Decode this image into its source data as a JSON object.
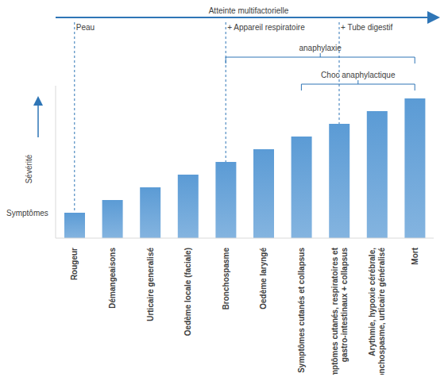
{
  "chart_data": {
    "type": "bar",
    "title": "Atteinte multifactorielle",
    "y_label": "Sévérité",
    "y_label_bottom": "Symptômes",
    "categories": [
      "Rougeur",
      "Démangeaisons",
      "Urticaire generalisé",
      "Oedème locale (faciale)",
      "Bronchospasme",
      "Oedème laryngé",
      "Symptômes cutanés et collapsus",
      "Symptômes cutanés, respiratoires et\ngastro-intestinaux + collapsus",
      "Arythmie, hypoxie cérébrale,\nbronchospasme, urticaire généralisé",
      "Mort"
    ],
    "values": [
      2,
      3,
      4,
      5,
      6,
      7,
      8,
      9,
      10,
      11
    ],
    "color": "#5b9bd5",
    "ylim": [
      0,
      12
    ],
    "tick_labels": "x",
    "grid": false,
    "annotations": [
      {
        "text": "Peau",
        "category": 0
      },
      {
        "text": "+ Appareil respiratoire",
        "category": 4
      },
      {
        "text": "+ Tube digestif",
        "category": 7
      }
    ],
    "brackets": [
      {
        "text": "anaphylaxie",
        "from": 4,
        "to": 9
      },
      {
        "text": "Choc anaphylactique",
        "from": 6,
        "to": 9
      }
    ]
  }
}
